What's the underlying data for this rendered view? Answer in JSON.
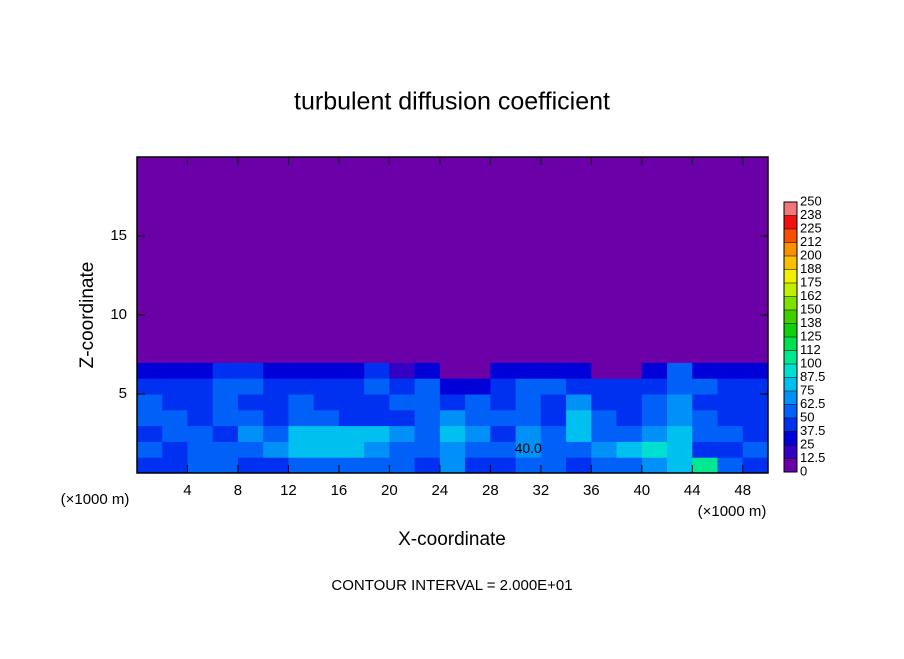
{
  "chart_data": {
    "type": "heatmap",
    "title": "turbulent diffusion coefficient",
    "x_label": "X-coordinate",
    "y_label": "Z-coordinate",
    "x_unit_left": "(×1000 m)",
    "x_unit_right": "(×1000 m)",
    "footnote": "CONTOUR INTERVAL = 2.000E+01",
    "annotation": {
      "text": "40.0",
      "x": 31,
      "y": 1.5
    },
    "xlim": [
      0,
      50
    ],
    "ylim": [
      0,
      20
    ],
    "xticks": [
      4,
      8,
      12,
      16,
      20,
      24,
      28,
      32,
      36,
      40,
      44,
      48
    ],
    "yticks": [
      5,
      10,
      15
    ],
    "x_edges": [
      0,
      2,
      4,
      6,
      8,
      10,
      12,
      14,
      16,
      18,
      20,
      22,
      24,
      26,
      28,
      30,
      32,
      34,
      36,
      38,
      40,
      42,
      44,
      46,
      48,
      50
    ],
    "y_edges": [
      0,
      1,
      2,
      3,
      4,
      5,
      6,
      7,
      20
    ],
    "z": [
      [
        40,
        45,
        50,
        55,
        45,
        40,
        50,
        55,
        60,
        55,
        50,
        45,
        70,
        45,
        40,
        50,
        55,
        45,
        50,
        60,
        65,
        85,
        100,
        60,
        45
      ],
      [
        50,
        45,
        55,
        60,
        50,
        70,
        75,
        80,
        75,
        70,
        60,
        55,
        65,
        60,
        50,
        70,
        60,
        55,
        65,
        75,
        90,
        80,
        45,
        45,
        55
      ],
      [
        45,
        55,
        50,
        45,
        65,
        55,
        80,
        85,
        80,
        75,
        65,
        50,
        75,
        65,
        45,
        65,
        50,
        75,
        60,
        50,
        70,
        75,
        55,
        50,
        45
      ],
      [
        50,
        60,
        45,
        55,
        50,
        45,
        55,
        50,
        45,
        40,
        45,
        60,
        70,
        55,
        55,
        60,
        45,
        80,
        50,
        45,
        60,
        70,
        50,
        45,
        45
      ],
      [
        55,
        45,
        40,
        60,
        45,
        40,
        50,
        45,
        40,
        45,
        50,
        55,
        45,
        50,
        45,
        50,
        40,
        70,
        45,
        40,
        50,
        65,
        45,
        40,
        45
      ],
      [
        45,
        40,
        45,
        50,
        55,
        45,
        45,
        40,
        45,
        50,
        40,
        50,
        30,
        35,
        45,
        60,
        50,
        45,
        40,
        45,
        40,
        60,
        50,
        45,
        40
      ],
      [
        35,
        30,
        25,
        40,
        45,
        35,
        30,
        25,
        35,
        40,
        20,
        30,
        10,
        10,
        25,
        35,
        25,
        30,
        5,
        5,
        30,
        55,
        35,
        30,
        35
      ],
      [
        0,
        0,
        0,
        0,
        0,
        0,
        0,
        0,
        0,
        0,
        0,
        0,
        0,
        0,
        0,
        0,
        0,
        0,
        0,
        0,
        0,
        10,
        0,
        0,
        0
      ]
    ],
    "colorbar_ticks": [
      0,
      12.5,
      25,
      37.5,
      50,
      62.5,
      75,
      87.5,
      100,
      {
        "value": 112.5,
        "label": "112"
      },
      125,
      {
        "value": 137.5,
        "label": "138"
      },
      150,
      {
        "value": 162.5,
        "label": "162"
      },
      175,
      {
        "value": 187.5,
        "label": "188"
      },
      200,
      {
        "value": 212.5,
        "label": "212"
      },
      225,
      {
        "value": 237.5,
        "label": "238"
      },
      250
    ],
    "colors": [
      "#6c00a8",
      "#3400c4",
      "#0000d8",
      "#0030f0",
      "#0060f8",
      "#0090f8",
      "#00c0f0",
      "#00e0d0",
      "#00e890",
      "#00e050",
      "#10d010",
      "#40d000",
      "#80e000",
      "#c0f000",
      "#f0f000",
      "#f8c000",
      "#f89000",
      "#f85000",
      "#f01010",
      "#f07878"
    ]
  }
}
